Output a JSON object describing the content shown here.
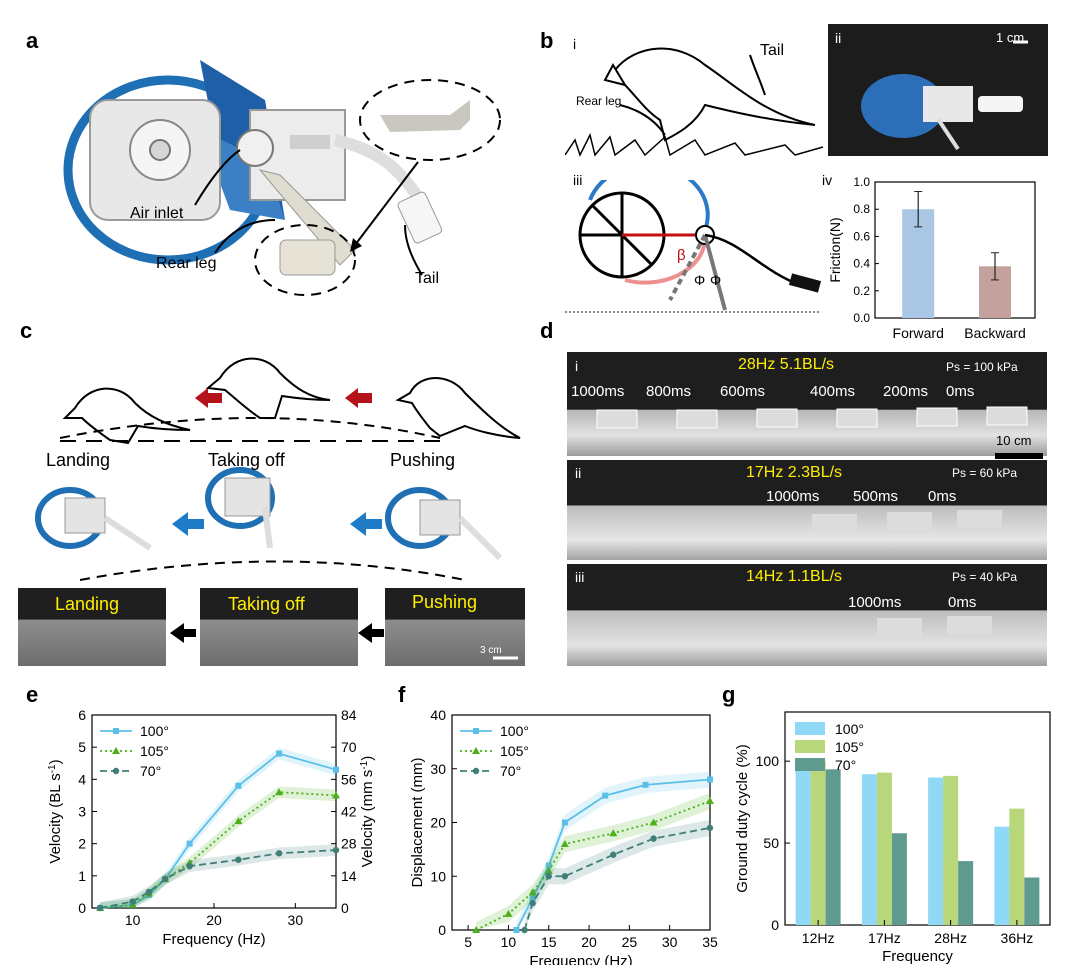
{
  "panels": {
    "a": {
      "label": "a",
      "callouts": {
        "air_inlet": "Air inlet",
        "rear_leg": "Rear leg",
        "tail": "Tail"
      }
    },
    "b": {
      "label": "b",
      "sub_i": "i",
      "sub_ii": "ii",
      "sub_iii": "iii",
      "sub_iv": "iv",
      "tail": "Tail",
      "rear_leg": "Rear leg",
      "scale": "1 cm",
      "beta": "β",
      "phi1": "Φ",
      "phi2": "Φ"
    },
    "c": {
      "label": "c",
      "phases": [
        "Landing",
        "Taking off",
        "Pushing"
      ],
      "photo_labels": [
        "Landing",
        "Taking off",
        "Pushing"
      ],
      "scale": "3 cm"
    },
    "d": {
      "label": "d",
      "rows": [
        {
          "roman": "i",
          "title": "28Hz  5.1BL/s",
          "pressure": "Ps = 100 kPa",
          "times": [
            "1000ms",
            "800ms",
            "600ms",
            "400ms",
            "200ms",
            "0ms"
          ],
          "scale": "10 cm"
        },
        {
          "roman": "ii",
          "title": "17Hz  2.3BL/s",
          "pressure": "Ps = 60 kPa",
          "times": [
            "1000ms",
            "500ms",
            "0ms"
          ]
        },
        {
          "roman": "iii",
          "title": "14Hz  1.1BL/s",
          "pressure": "Ps = 40 kPa",
          "times": [
            "1000ms",
            "0ms"
          ]
        }
      ]
    },
    "e": {
      "label": "e"
    },
    "f": {
      "label": "f"
    },
    "g": {
      "label": "g"
    }
  },
  "chart_data": [
    {
      "id": "b-iv",
      "type": "bar",
      "categories": [
        "Forward",
        "Backward"
      ],
      "values": [
        0.8,
        0.38
      ],
      "errors": [
        0.13,
        0.1
      ],
      "colors": [
        "#a9c6e4",
        "#c4a19d"
      ],
      "ylabel": "Friction(N)",
      "ylim": [
        0,
        1.0
      ],
      "yticks": [
        "0.0",
        "0.2",
        "0.4",
        "0.6",
        "0.8",
        "1.0"
      ]
    },
    {
      "id": "e",
      "type": "line",
      "xlabel": "Frequency (Hz)",
      "ylabel": "Velocity (BL s-1)",
      "ylabel_main": "Velocity (BL s",
      "ylabel_sup": "-1",
      "ylabel_end": ")",
      "y2label_main": "Velocity (mm s",
      "y2label_sup": "-1",
      "y2label_end": ")",
      "xlim": [
        5,
        35
      ],
      "ylim": [
        0,
        6
      ],
      "y2lim": [
        0,
        84
      ],
      "xticks": [
        "10",
        "20",
        "30"
      ],
      "yticks": [
        "0",
        "1",
        "2",
        "3",
        "4",
        "5",
        "6"
      ],
      "y2ticks": [
        "0",
        "14",
        "28",
        "42",
        "56",
        "70",
        "84"
      ],
      "legend": [
        "100°",
        "105°",
        "70°"
      ],
      "series": [
        {
          "name": "100°",
          "color": "#5bc0e8",
          "marker": "square",
          "dash": "",
          "x": [
            6,
            10,
            12,
            14,
            17,
            23,
            28,
            35
          ],
          "y": [
            0,
            0.1,
            0.4,
            0.9,
            2.0,
            3.8,
            4.8,
            4.3
          ]
        },
        {
          "name": "105°",
          "color": "#4caf1c",
          "marker": "triangle",
          "dash": "2,3",
          "x": [
            6,
            10,
            12,
            14,
            17,
            23,
            28,
            35
          ],
          "y": [
            0,
            0.1,
            0.45,
            0.9,
            1.4,
            2.7,
            3.6,
            3.5
          ]
        },
        {
          "name": "70°",
          "color": "#3f7f78",
          "marker": "circle",
          "dash": "7,4",
          "x": [
            6,
            10,
            12,
            14,
            17,
            23,
            28,
            35
          ],
          "y": [
            0,
            0.2,
            0.5,
            0.9,
            1.3,
            1.5,
            1.7,
            1.8
          ]
        }
      ]
    },
    {
      "id": "f",
      "type": "line",
      "xlabel": "Frequency (Hz)",
      "ylabel": "Displacement (mm)",
      "xlim": [
        3,
        35
      ],
      "ylim": [
        0,
        40
      ],
      "xticks": [
        "5",
        "10",
        "15",
        "20",
        "25",
        "30",
        "35"
      ],
      "yticks": [
        "0",
        "10",
        "20",
        "30",
        "40"
      ],
      "legend": [
        "100°",
        "105°",
        "70°"
      ],
      "series": [
        {
          "name": "100°",
          "color": "#5bc0e8",
          "marker": "square",
          "dash": "",
          "x": [
            11,
            13,
            15,
            17,
            22,
            27,
            35
          ],
          "y": [
            0,
            6,
            12,
            20,
            25,
            27,
            28
          ]
        },
        {
          "name": "105°",
          "color": "#4caf1c",
          "marker": "triangle",
          "dash": "2,3",
          "x": [
            6,
            10,
            13,
            15,
            17,
            23,
            28,
            35
          ],
          "y": [
            0,
            3,
            7,
            11,
            16,
            18,
            20,
            24
          ]
        },
        {
          "name": "70°",
          "color": "#3f7f78",
          "marker": "circle",
          "dash": "7,4",
          "x": [
            12,
            13,
            15,
            17,
            23,
            28,
            35
          ],
          "y": [
            0,
            5,
            10,
            10,
            14,
            17,
            19
          ]
        }
      ]
    },
    {
      "id": "g",
      "type": "bar",
      "xlabel": "Frequency",
      "ylabel": "Ground duty cycle (%)",
      "categories": [
        "12Hz",
        "17Hz",
        "28Hz",
        "36Hz"
      ],
      "ylim": [
        0,
        130
      ],
      "yticks": [
        "0",
        "50",
        "100"
      ],
      "legend": [
        "100°",
        "105°",
        "70°"
      ],
      "series": [
        {
          "name": "100°",
          "color": "#8fd8f6",
          "values": [
            100,
            92,
            90,
            60
          ]
        },
        {
          "name": "105°",
          "color": "#b7d77a",
          "values": [
            100,
            93,
            91,
            71
          ]
        },
        {
          "name": "70°",
          "color": "#5e9a8d",
          "values": [
            95,
            56,
            39,
            29
          ]
        }
      ]
    }
  ]
}
